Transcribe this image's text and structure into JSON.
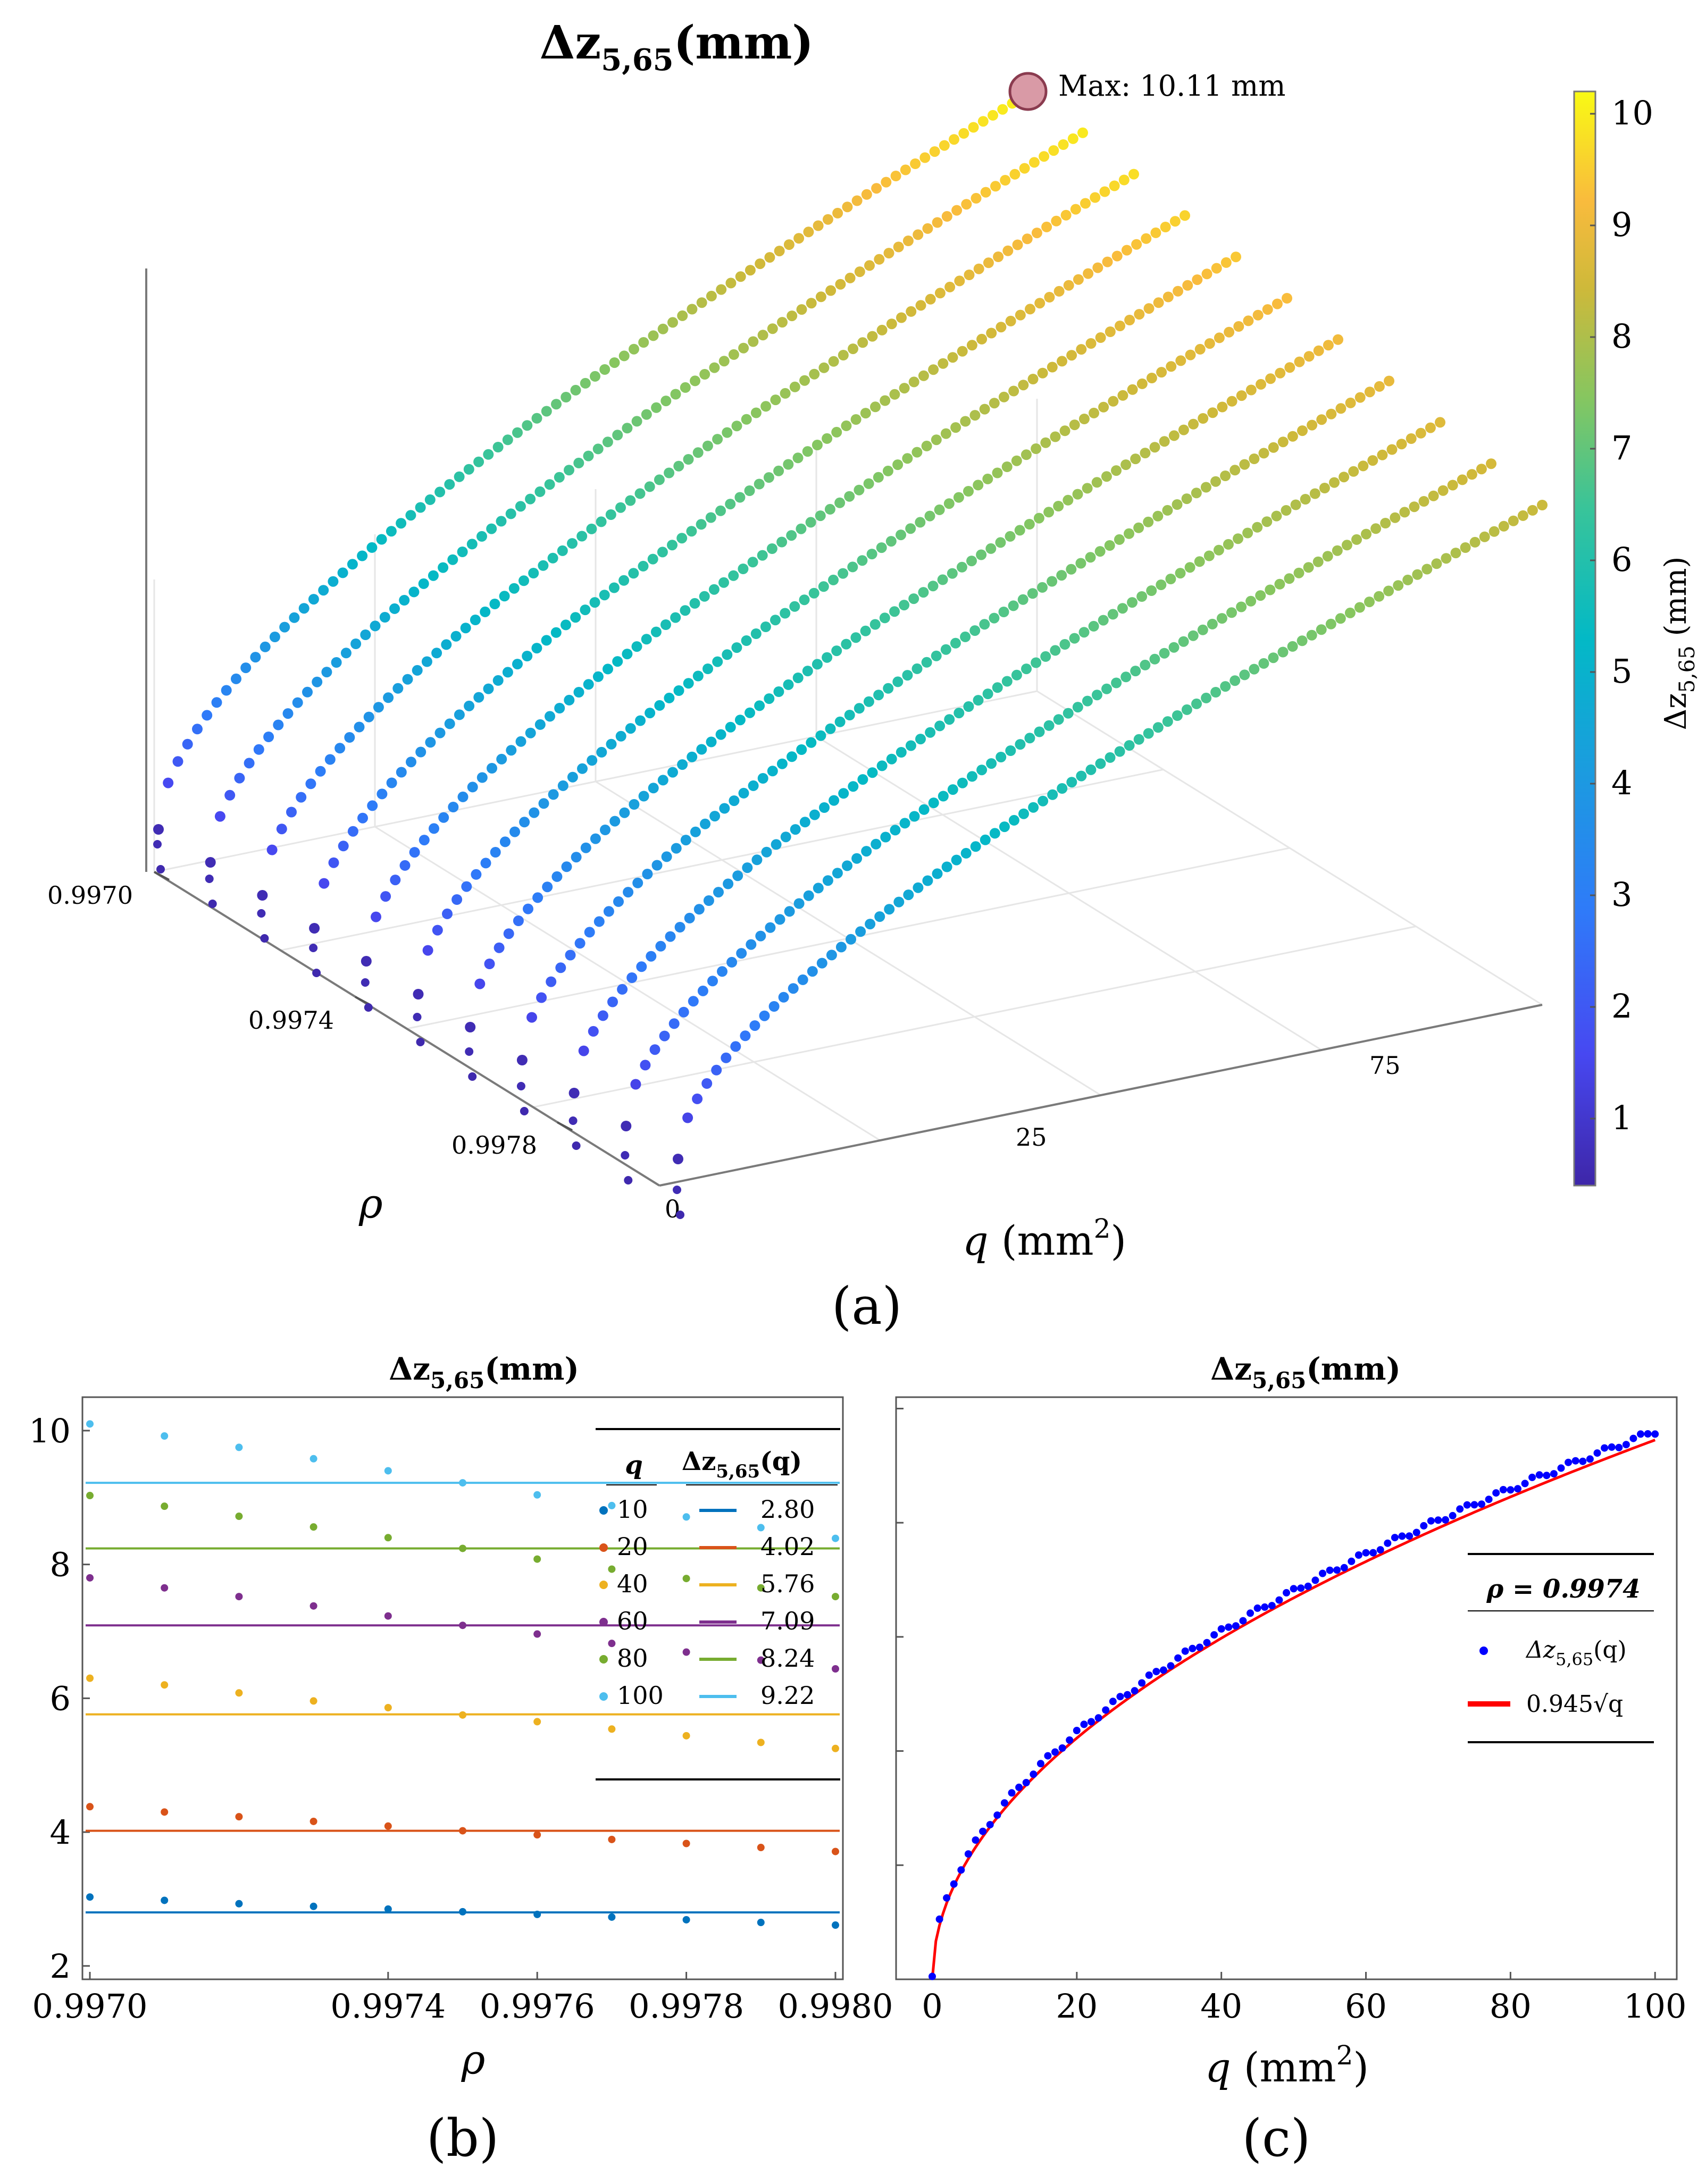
{
  "panels": {
    "a": {
      "label": "(a)",
      "title": "Δz",
      "title_sub": "5,65",
      "title_unit": "(mm)",
      "max_note": "Max: 10.11 mm",
      "colorbar": {
        "label": "Δz",
        "label_sub": "5,65",
        "label_unit": " (mm)",
        "ticks": [
          "1",
          "2",
          "3",
          "4",
          "5",
          "6",
          "7",
          "8",
          "9",
          "10"
        ],
        "range": [
          0.4,
          10.2
        ]
      },
      "axes": {
        "rho_label": "ρ",
        "rho_ticks": [
          "0.9970",
          "0.9974",
          "0.9978"
        ],
        "q_label": "q",
        "q_unit": " (mm",
        "q_unit_sup": "2",
        "q_unit_close": ")",
        "q_ticks": [
          "0",
          "25",
          "75"
        ]
      }
    },
    "b": {
      "label": "(b)",
      "title": "Δz",
      "title_sub": "5,65",
      "title_unit": "(mm)",
      "xlabel": "ρ",
      "xticks": [
        "0.9970",
        "0.9974",
        "0.9976",
        "0.9978",
        "0.9980"
      ],
      "yticks": [
        "2",
        "4",
        "6",
        "8",
        "10"
      ],
      "legend": {
        "col1": "q",
        "col2": "Δz",
        "col2_sub": "5,65",
        "col2_arg": "(q)",
        "rows": [
          {
            "q": "10",
            "v": "2.80"
          },
          {
            "q": "20",
            "v": "4.02"
          },
          {
            "q": "40",
            "v": "5.76"
          },
          {
            "q": "60",
            "v": "7.09"
          },
          {
            "q": "80",
            "v": "8.24"
          },
          {
            "q": "100",
            "v": "9.22"
          }
        ]
      }
    },
    "c": {
      "label": "(c)",
      "title": "Δz",
      "title_sub": "5,65",
      "title_unit": "(mm)",
      "xlabel": "q",
      "xunit": " (mm",
      "xunit_sup": "2",
      "xunit_close": ")",
      "xticks": [
        "0",
        "20",
        "40",
        "60",
        "80",
        "100"
      ],
      "legend": {
        "header": "ρ = 0.9974",
        "dots": "Δz",
        "dots_sub": "5,65",
        "dots_arg": "(q)",
        "fit": "0.945√q"
      }
    }
  },
  "chart_data": [
    {
      "type": "scatter",
      "panel": "a",
      "title": "Δz_5,65 (mm)",
      "xlabel": "q (mm²)",
      "ylabel": "ρ",
      "zlabel": "Δz_5,65 (mm)",
      "rho_values": [
        0.997,
        0.9971,
        0.9972,
        0.9973,
        0.9974,
        0.9975,
        0.9976,
        0.9977,
        0.9978,
        0.9979,
        0.998
      ],
      "q_range": [
        0,
        100
      ],
      "max_value": 10.11,
      "colorbar_ticks": [
        1,
        2,
        3,
        4,
        5,
        6,
        7,
        8,
        9,
        10
      ]
    },
    {
      "type": "scatter",
      "panel": "b",
      "title": "Δz_5,65 (mm)",
      "xlabel": "ρ",
      "ylabel": "",
      "xlim": [
        0.99699,
        0.99801
      ],
      "ylim": [
        1.8,
        10.5
      ],
      "x": [
        0.997,
        0.9971,
        0.9972,
        0.9973,
        0.9974,
        0.9975,
        0.9976,
        0.9977,
        0.9978,
        0.9979,
        0.998
      ],
      "series": [
        {
          "name": "10",
          "color": "#0072BD",
          "mean": 2.8,
          "values": [
            3.03,
            2.98,
            2.93,
            2.89,
            2.85,
            2.81,
            2.77,
            2.73,
            2.69,
            2.65,
            2.61
          ]
        },
        {
          "name": "20",
          "color": "#D95319",
          "mean": 4.02,
          "values": [
            4.38,
            4.3,
            4.23,
            4.16,
            4.09,
            4.02,
            3.96,
            3.89,
            3.83,
            3.77,
            3.71
          ]
        },
        {
          "name": "40",
          "color": "#EDB120",
          "mean": 5.76,
          "values": [
            6.3,
            6.2,
            6.08,
            5.96,
            5.86,
            5.75,
            5.65,
            5.54,
            5.44,
            5.34,
            5.25
          ]
        },
        {
          "name": "60",
          "color": "#7E2F8E",
          "mean": 7.09,
          "values": [
            7.8,
            7.65,
            7.52,
            7.38,
            7.23,
            7.09,
            6.96,
            6.82,
            6.69,
            6.57,
            6.44
          ]
        },
        {
          "name": "80",
          "color": "#77AC30",
          "mean": 8.24,
          "values": [
            9.03,
            8.87,
            8.72,
            8.56,
            8.4,
            8.24,
            8.08,
            7.93,
            7.79,
            7.65,
            7.52
          ]
        },
        {
          "name": "100",
          "color": "#4DBEEE",
          "mean": 9.22,
          "values": [
            10.1,
            9.92,
            9.75,
            9.58,
            9.4,
            9.22,
            9.04,
            8.88,
            8.71,
            8.55,
            8.39
          ]
        }
      ]
    },
    {
      "type": "scatter",
      "panel": "c",
      "title": "Δz_5,65 (mm)",
      "xlabel": "q (mm²)",
      "ylabel": "",
      "xlim": [
        -5,
        103
      ],
      "ylim": [
        0,
        10.2
      ],
      "rho": 0.9974,
      "fit_coefficient": 0.945,
      "dot_color": "#0000FF",
      "fit_color": "#FF0000",
      "x_start": 0,
      "x_end": 100,
      "x_step": 1,
      "note": "dots follow 0.945*sqrt(q) with a small positive offset, Δz(100)≈9.45"
    }
  ]
}
